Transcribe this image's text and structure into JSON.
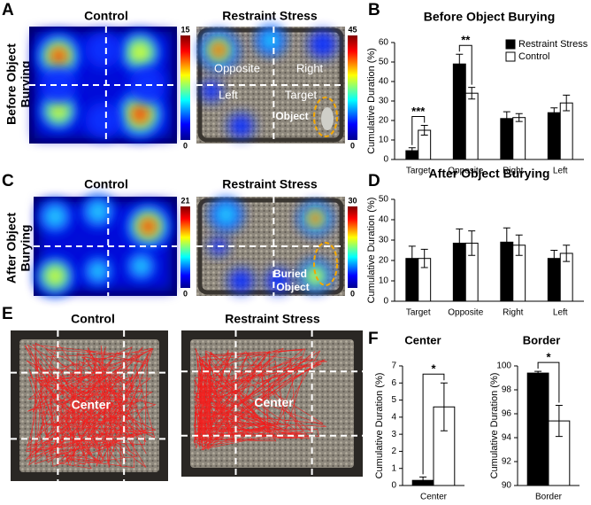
{
  "panels": [
    "A",
    "B",
    "C",
    "D",
    "E",
    "F"
  ],
  "heatmaps": {
    "row_labels": [
      [
        "Before Object",
        "Burying"
      ],
      [
        "After Object",
        "Burying"
      ]
    ],
    "columns": [
      "Control",
      "Restraint Stress"
    ],
    "colorbars": [
      {
        "max": 15,
        "min": 0
      },
      {
        "max": 45,
        "min": 0
      },
      {
        "max": 21,
        "min": 0
      },
      {
        "max": 30,
        "min": 0
      }
    ],
    "zones": [
      "Opposite",
      "Right",
      "Left",
      "Target"
    ],
    "object": "Object",
    "buried_object": [
      "Buried",
      "Object"
    ],
    "tracking_zone": "Center"
  },
  "chart_data": [
    {
      "type": "bar",
      "title": "Before Object Burying",
      "ylabel": "Cumulative Duration (%)",
      "categories": [
        "Target",
        "Opposite",
        "Right",
        "Left"
      ],
      "series": [
        {
          "name": "Restraint Stress",
          "color": "#000000",
          "values": [
            4.5,
            49,
            21,
            24
          ],
          "errors": [
            1.5,
            5,
            3.5,
            2.5
          ]
        },
        {
          "name": "Control",
          "color": "#ffffff",
          "values": [
            15,
            34,
            21.5,
            29
          ],
          "errors": [
            2.5,
            3,
            2,
            4
          ]
        }
      ],
      "annotations": [
        "***",
        "**",
        null,
        null
      ],
      "ylim": [
        0,
        60
      ],
      "yticks": [
        0,
        10,
        20,
        30,
        40,
        50,
        60
      ],
      "legend": "upper right"
    },
    {
      "type": "bar",
      "title": "After Object Burying",
      "ylabel": "Cumulative Duration (%)",
      "categories": [
        "Target",
        "Opposite",
        "Right",
        "Left"
      ],
      "series": [
        {
          "color": "#000000",
          "values": [
            21,
            28.5,
            29,
            21
          ],
          "errors": [
            6,
            7,
            7,
            4
          ]
        },
        {
          "color": "#ffffff",
          "values": [
            21,
            28.5,
            27.5,
            23.5
          ],
          "errors": [
            4.5,
            6,
            5,
            4
          ]
        }
      ],
      "ylim": [
        0,
        50
      ],
      "yticks": [
        0,
        10,
        20,
        30,
        40,
        50
      ]
    },
    {
      "type": "bar",
      "title": "Center",
      "ylabel": "Cumulative Duration (%)",
      "categories": [
        "Center"
      ],
      "series": [
        {
          "color": "#000000",
          "values": [
            0.3
          ],
          "errors": [
            0.2
          ]
        },
        {
          "color": "#ffffff",
          "values": [
            4.6
          ],
          "errors": [
            1.4
          ]
        }
      ],
      "annotations": [
        "*"
      ],
      "ylim": [
        0,
        7
      ],
      "yticks": [
        0,
        1,
        2,
        3,
        4,
        5,
        6,
        7
      ]
    },
    {
      "type": "bar",
      "title": "Border",
      "ylabel": "Cumulative Duration (%)",
      "categories": [
        "Border"
      ],
      "series": [
        {
          "color": "#000000",
          "values": [
            99.4
          ],
          "errors": [
            0.15
          ]
        },
        {
          "color": "#ffffff",
          "values": [
            95.4
          ],
          "errors": [
            1.3
          ]
        }
      ],
      "annotations": [
        "*"
      ],
      "ylim": [
        90,
        100
      ],
      "yticks": [
        90,
        92,
        94,
        96,
        98,
        100
      ]
    }
  ]
}
